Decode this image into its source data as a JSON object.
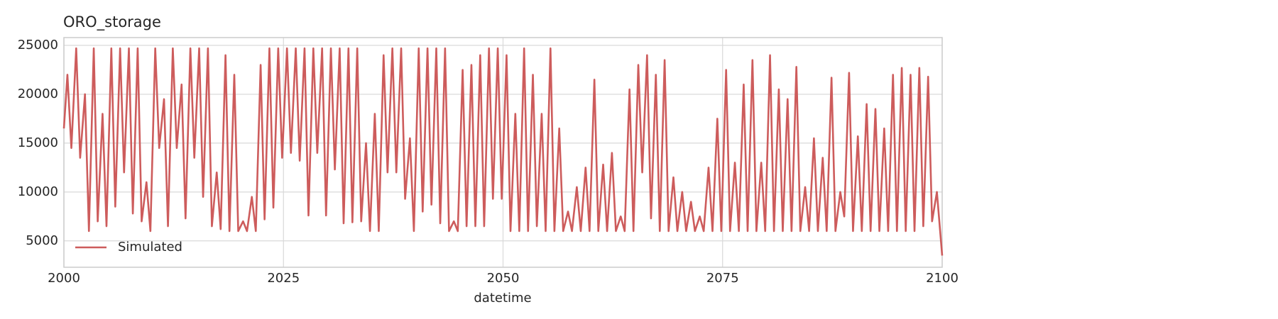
{
  "chart_data": {
    "type": "line",
    "title": "ORO_storage",
    "x_label": "datetime",
    "xlim": [
      2000,
      2100
    ],
    "xticks": [
      2000,
      2025,
      2050,
      2075,
      2100
    ],
    "ylim": [
      2300,
      25800
    ],
    "yticks": [
      5000,
      10000,
      15000,
      20000,
      25000
    ],
    "grid": true,
    "legend": "lower left",
    "x": [
      2000,
      2000.4,
      2000.85,
      2001.4,
      2001.85,
      2002.4,
      2002.85,
      2003.4,
      2003.85,
      2004.4,
      2004.85,
      2005.4,
      2005.85,
      2006.4,
      2006.85,
      2007.4,
      2007.85,
      2008.4,
      2008.85,
      2009.4,
      2009.85,
      2010.4,
      2010.85,
      2011.4,
      2011.85,
      2012.4,
      2012.85,
      2013.4,
      2013.85,
      2014.4,
      2014.85,
      2015.4,
      2015.85,
      2016.4,
      2016.85,
      2017.4,
      2017.85,
      2018.4,
      2018.85,
      2019.4,
      2019.85,
      2020.4,
      2020.85,
      2021.4,
      2021.85,
      2022.4,
      2022.85,
      2023.4,
      2023.85,
      2024.4,
      2024.85,
      2025.4,
      2025.85,
      2026.4,
      2026.85,
      2027.4,
      2027.85,
      2028.4,
      2028.85,
      2029.4,
      2029.85,
      2030.4,
      2030.85,
      2031.4,
      2031.85,
      2032.4,
      2032.85,
      2033.4,
      2033.85,
      2034.4,
      2034.85,
      2035.4,
      2035.85,
      2036.4,
      2036.85,
      2037.4,
      2037.85,
      2038.4,
      2038.85,
      2039.4,
      2039.85,
      2040.4,
      2040.85,
      2041.4,
      2041.85,
      2042.4,
      2042.85,
      2043.4,
      2043.85,
      2044.4,
      2044.85,
      2045.4,
      2045.85,
      2046.4,
      2046.85,
      2047.4,
      2047.85,
      2048.4,
      2048.85,
      2049.4,
      2049.85,
      2050.4,
      2050.85,
      2051.4,
      2051.85,
      2052.4,
      2052.85,
      2053.4,
      2053.85,
      2054.4,
      2054.85,
      2055.4,
      2055.85,
      2056.4,
      2056.85,
      2057.4,
      2057.85,
      2058.4,
      2058.85,
      2059.4,
      2059.85,
      2060.4,
      2060.85,
      2061.4,
      2061.85,
      2062.4,
      2062.85,
      2063.4,
      2063.85,
      2064.4,
      2064.85,
      2065.4,
      2065.85,
      2066.4,
      2066.85,
      2067.4,
      2067.85,
      2068.4,
      2068.85,
      2069.4,
      2069.85,
      2070.4,
      2070.85,
      2071.4,
      2071.85,
      2072.4,
      2072.85,
      2073.4,
      2073.85,
      2074.4,
      2074.85,
      2075.4,
      2075.85,
      2076.4,
      2076.85,
      2077.4,
      2077.85,
      2078.4,
      2078.85,
      2079.4,
      2079.85,
      2080.4,
      2080.85,
      2081.4,
      2081.85,
      2082.4,
      2082.85,
      2083.4,
      2083.85,
      2084.4,
      2084.85,
      2085.4,
      2085.85,
      2086.4,
      2086.85,
      2087.4,
      2087.85,
      2088.4,
      2088.85,
      2089.4,
      2089.85,
      2090.4,
      2090.85,
      2091.4,
      2091.85,
      2092.4,
      2092.85,
      2093.4,
      2093.85,
      2094.4,
      2094.85,
      2095.4,
      2095.85,
      2096.4,
      2096.85,
      2097.4,
      2097.85,
      2098.4,
      2098.85,
      2099.4,
      2100
    ],
    "series": [
      {
        "name": "Simulated",
        "color": "#cd5c5c",
        "values": [
          16500,
          22000,
          14500,
          24700,
          13500,
          20000,
          6000,
          24700,
          7000,
          18000,
          6500,
          24700,
          8500,
          24700,
          12000,
          24700,
          7800,
          24700,
          7000,
          11000,
          6000,
          24700,
          14500,
          19500,
          6500,
          24700,
          14500,
          21000,
          7300,
          24700,
          13500,
          24700,
          9500,
          24700,
          6500,
          12000,
          6200,
          24000,
          6000,
          22000,
          6000,
          7000,
          6000,
          9500,
          6000,
          23000,
          7200,
          24700,
          8400,
          24700,
          13500,
          24700,
          14000,
          24700,
          13200,
          24700,
          7600,
          24700,
          14000,
          24700,
          7600,
          24700,
          12300,
          24700,
          6800,
          24700,
          6900,
          24700,
          7000,
          15000,
          6000,
          18000,
          6000,
          24000,
          12000,
          24700,
          12000,
          24700,
          9300,
          15500,
          6000,
          24700,
          8000,
          24700,
          8700,
          24700,
          6800,
          24700,
          6000,
          7000,
          6000,
          22500,
          6500,
          23000,
          6500,
          24000,
          6500,
          24700,
          9300,
          24700,
          9300,
          24000,
          6000,
          18000,
          6000,
          24700,
          6000,
          22000,
          6500,
          18000,
          6000,
          24700,
          6000,
          16500,
          6000,
          8000,
          6000,
          10500,
          6000,
          12500,
          6000,
          21500,
          6000,
          12800,
          6000,
          14000,
          6000,
          7500,
          6000,
          20500,
          6000,
          23000,
          12000,
          24000,
          7300,
          22000,
          6000,
          23500,
          6000,
          11500,
          6000,
          10000,
          6000,
          9000,
          6000,
          7500,
          6000,
          12500,
          6000,
          17500,
          6000,
          22500,
          6000,
          13000,
          6000,
          21000,
          6000,
          23500,
          6000,
          13000,
          6000,
          24000,
          6000,
          20500,
          6000,
          19500,
          6000,
          22800,
          6000,
          10500,
          6000,
          15500,
          6000,
          13500,
          6000,
          21700,
          6000,
          10000,
          7500,
          22200,
          6000,
          15700,
          6000,
          19000,
          6000,
          18500,
          6000,
          16500,
          6000,
          22000,
          6000,
          22700,
          6000,
          22000,
          6000,
          22700,
          6500,
          21800,
          7000,
          10000,
          3500
        ]
      }
    ]
  }
}
